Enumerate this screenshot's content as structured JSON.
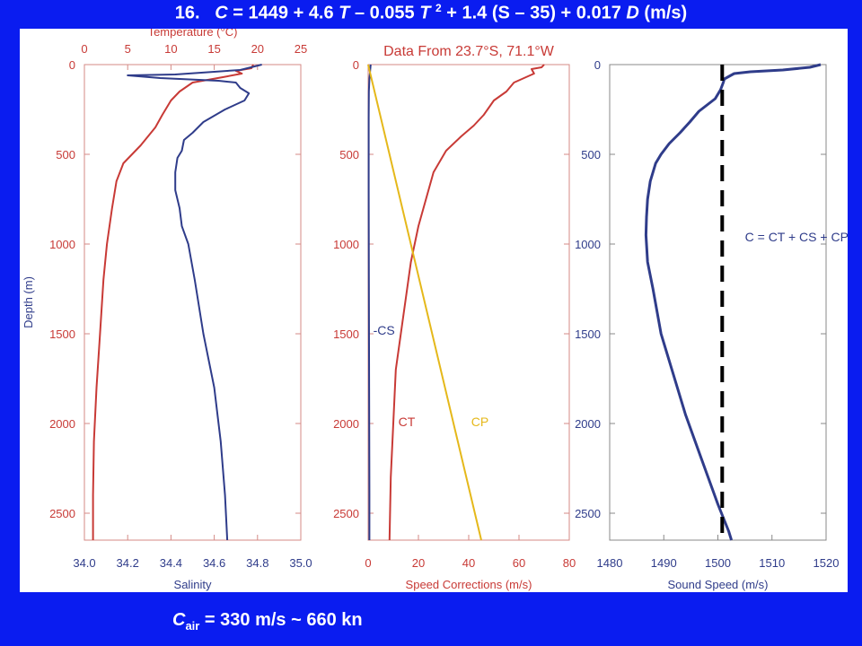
{
  "slide": {
    "number": "16.",
    "formula": {
      "lhs": "C",
      "p1": " = 1449 + 4.6 ",
      "t1": "T",
      "p2": " – 0.055 ",
      "t2": "T",
      "exp": "2",
      "p3": " + 1.4 (",
      "s": "S",
      "p4": " – 35) + 0.017 ",
      "d": "D",
      "p5": " (m/s)"
    },
    "footer": {
      "c": "C",
      "sub": "air",
      "rest": " = 330 m/s ~ 660 kn"
    }
  },
  "colors": {
    "background": "#0a1cf0",
    "panel": "#ffffff",
    "red": "#c83a36",
    "navy": "#2f3c8a",
    "yellow": "#e5b81a",
    "black": "#000000",
    "axis_red": "#d48a86",
    "axis_gray": "#888888"
  },
  "chart_data": [
    {
      "type": "line",
      "title": "",
      "ylabel": "Depth (m)",
      "ylim": [
        2650,
        0
      ],
      "yticks": [
        0,
        500,
        1000,
        1500,
        2000,
        2500
      ],
      "top_axis": {
        "label": "Temperature (°C)",
        "range": [
          0,
          25
        ],
        "ticks": [
          0,
          5,
          10,
          15,
          20,
          25
        ]
      },
      "bottom_axis": {
        "label": "Salinity",
        "range": [
          34.0,
          35.0
        ],
        "ticks": [
          "34.0",
          "34.2",
          "34.4",
          "34.6",
          "34.8",
          "35.0"
        ]
      },
      "series": [
        {
          "name": "",
          "axis": "top",
          "color": "red",
          "points": [
            [
              19.5,
              0
            ],
            [
              19.3,
              20
            ],
            [
              17.5,
              35
            ],
            [
              18.2,
              50
            ],
            [
              16.0,
              70
            ],
            [
              12.5,
              100
            ],
            [
              11.0,
              150
            ],
            [
              10.0,
              200
            ],
            [
              9.0,
              280
            ],
            [
              8.2,
              350
            ],
            [
              6.5,
              450
            ],
            [
              4.5,
              550
            ],
            [
              3.7,
              650
            ],
            [
              3.2,
              800
            ],
            [
              2.6,
              1000
            ],
            [
              2.2,
              1200
            ],
            [
              1.8,
              1500
            ],
            [
              1.4,
              1800
            ],
            [
              1.1,
              2100
            ],
            [
              1.0,
              2400
            ],
            [
              1.0,
              2650
            ]
          ]
        },
        {
          "name": "",
          "axis": "bottom",
          "color": "navy",
          "points": [
            [
              34.82,
              0
            ],
            [
              34.72,
              30
            ],
            [
              34.42,
              55
            ],
            [
              34.2,
              60
            ],
            [
              34.35,
              75
            ],
            [
              34.62,
              90
            ],
            [
              34.7,
              100
            ],
            [
              34.72,
              130
            ],
            [
              34.76,
              160
            ],
            [
              34.74,
              200
            ],
            [
              34.65,
              250
            ],
            [
              34.55,
              320
            ],
            [
              34.5,
              380
            ],
            [
              34.46,
              420
            ],
            [
              34.45,
              480
            ],
            [
              34.43,
              520
            ],
            [
              34.42,
              600
            ],
            [
              34.42,
              700
            ],
            [
              34.44,
              800
            ],
            [
              34.45,
              900
            ],
            [
              34.48,
              1000
            ],
            [
              34.51,
              1200
            ],
            [
              34.55,
              1500
            ],
            [
              34.6,
              1800
            ],
            [
              34.63,
              2100
            ],
            [
              34.65,
              2400
            ],
            [
              34.66,
              2650
            ]
          ]
        }
      ]
    },
    {
      "type": "line",
      "title": "Data From 23.7°S, 71.1°W",
      "ylabel": "",
      "ylim": [
        2650,
        0
      ],
      "yticks": [
        0,
        500,
        1000,
        1500,
        2000,
        2500
      ],
      "xlabel": "Speed Corrections (m/s)",
      "xlim": [
        0,
        80
      ],
      "xticks": [
        0,
        20,
        40,
        60,
        80
      ],
      "series": [
        {
          "name": "CT",
          "color": "red",
          "points": [
            [
              70,
              0
            ],
            [
              69,
              15
            ],
            [
              65,
              25
            ],
            [
              66,
              50
            ],
            [
              58,
              100
            ],
            [
              55,
              150
            ],
            [
              50,
              200
            ],
            [
              46,
              280
            ],
            [
              42,
              340
            ],
            [
              37,
              400
            ],
            [
              31,
              480
            ],
            [
              26,
              600
            ],
            [
              23,
              750
            ],
            [
              20,
              900
            ],
            [
              17,
              1100
            ],
            [
              15,
              1300
            ],
            [
              13,
              1500
            ],
            [
              11,
              1700
            ],
            [
              10,
              2000
            ],
            [
              9,
              2300
            ],
            [
              8.5,
              2650
            ]
          ]
        },
        {
          "name": "-CS",
          "color": "navy",
          "points": [
            [
              1.0,
              0
            ],
            [
              0.5,
              80
            ],
            [
              0.3,
              150
            ],
            [
              0.2,
              300
            ],
            [
              0.2,
              700
            ],
            [
              0.3,
              1200
            ],
            [
              0.4,
              1800
            ],
            [
              0.5,
              2400
            ],
            [
              0.5,
              2650
            ]
          ]
        },
        {
          "name": "CP",
          "color": "yellow",
          "points": [
            [
              0,
              0
            ],
            [
              45,
              2650
            ]
          ]
        }
      ],
      "annotations": [
        {
          "text": "-CS",
          "x": 2,
          "y": 1480
        },
        {
          "text": "CT",
          "x": 12,
          "y": 1990
        },
        {
          "text": "CP",
          "x": 41,
          "y": 1990
        }
      ]
    },
    {
      "type": "line",
      "title": "",
      "ylabel": "",
      "ylim": [
        2650,
        0
      ],
      "yticks": [
        0,
        500,
        1000,
        1500,
        2000,
        2500
      ],
      "xlabel": "Sound Speed (m/s)",
      "xlim": [
        1480,
        1520
      ],
      "xticks": [
        1480,
        1490,
        1500,
        1510,
        1520
      ],
      "series": [
        {
          "name": "",
          "color": "navy",
          "points": [
            [
              1519.0,
              0
            ],
            [
              1517,
              15
            ],
            [
              1512,
              30
            ],
            [
              1506,
              40
            ],
            [
              1503,
              50
            ],
            [
              1501.2,
              80
            ],
            [
              1501.0,
              100
            ],
            [
              1500.5,
              140
            ],
            [
              1499.5,
              190
            ],
            [
              1496.5,
              260
            ],
            [
              1494.8,
              320
            ],
            [
              1493.0,
              380
            ],
            [
              1491.0,
              440
            ],
            [
              1489.5,
              500
            ],
            [
              1488.5,
              550
            ],
            [
              1487.5,
              650
            ],
            [
              1487.0,
              750
            ],
            [
              1486.8,
              850
            ],
            [
              1486.7,
              950
            ],
            [
              1487.0,
              1100
            ],
            [
              1488.0,
              1250
            ],
            [
              1489.5,
              1500
            ],
            [
              1491.5,
              1700
            ],
            [
              1494.0,
              1950
            ],
            [
              1497.0,
              2200
            ],
            [
              1500.0,
              2450
            ],
            [
              1502.0,
              2600
            ],
            [
              1502.5,
              2650
            ]
          ]
        },
        {
          "name": "",
          "color": "black",
          "dashed": true,
          "points": [
            [
              1500.8,
              0
            ],
            [
              1500.8,
              2650
            ]
          ]
        }
      ],
      "annotations": [
        {
          "text": "C = CT + CS + CP",
          "x": 1505,
          "y": 960
        }
      ]
    }
  ]
}
